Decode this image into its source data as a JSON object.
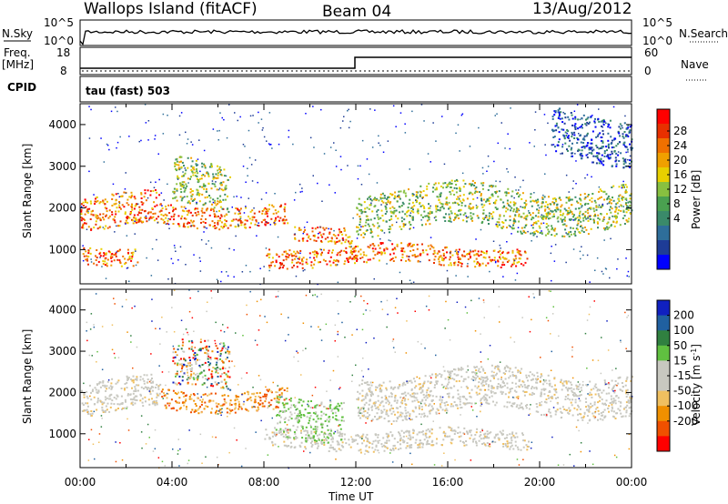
{
  "header": {
    "station": "Wallops Island (fitACF)",
    "beam": "Beam 04",
    "date": "13/Aug/2012"
  },
  "top_panels": {
    "nsky_label": "N.Sky",
    "nsky_ticks": [
      "10^5",
      "10^0"
    ],
    "nsearch_label": "N.Search",
    "nsearch_ticks": [
      "10^5",
      "10^0"
    ],
    "freq_label": "Freq.",
    "freq_unit": "[MHz]",
    "freq_ticks": [
      "18",
      "8"
    ],
    "nave_label": "Nave",
    "nave_ticks": [
      "60",
      "0"
    ],
    "cpid_label": "CPID",
    "cpid_value": "tau (fast) 503"
  },
  "chart_data": [
    {
      "type": "heatmap",
      "name": "power",
      "ylabel": "Slant Range [km]",
      "yticks": [
        "4000",
        "3000",
        "2000",
        "1000"
      ],
      "ylim": [
        180,
        4500
      ],
      "xlim": [
        0,
        24
      ],
      "colorbar_label": "Power [dB]",
      "colorbar_ticks": [
        "28",
        "24",
        "20",
        "16",
        "12",
        "8",
        "4"
      ],
      "colorbar_colors": [
        "#0000ff",
        "#1e3c96",
        "#2e6e9a",
        "#3a8a6a",
        "#4aa050",
        "#88c040",
        "#e8d000",
        "#f0a000",
        "#f07000",
        "#e83000",
        "#ff0000"
      ],
      "echo_bands": [
        {
          "t0": 0.0,
          "t1": 3.5,
          "r0": 1500,
          "r1": 2300,
          "level": "high"
        },
        {
          "t0": 3.5,
          "t1": 9.0,
          "r0": 1600,
          "r1": 2100,
          "level": "high"
        },
        {
          "t0": 9.3,
          "t1": 11.8,
          "r0": 1150,
          "r1": 1550,
          "level": "high"
        },
        {
          "t0": 12.0,
          "t1": 24.0,
          "r0": 1500,
          "r1": 2500,
          "level": "mid"
        },
        {
          "t0": 0.0,
          "t1": 2.5,
          "r0": 700,
          "r1": 1100,
          "level": "high"
        },
        {
          "t0": 8.0,
          "t1": 19.5,
          "r0": 650,
          "r1": 1100,
          "level": "high"
        },
        {
          "t0": 4.0,
          "t1": 6.5,
          "r0": 2000,
          "r1": 3100,
          "level": "mid"
        },
        {
          "t0": 20.5,
          "t1": 24.0,
          "r0": 3200,
          "r1": 4300,
          "level": "low"
        }
      ]
    },
    {
      "type": "heatmap",
      "name": "velocity",
      "ylabel": "Slant Range [km]",
      "yticks": [
        "4000",
        "3000",
        "2000",
        "1000"
      ],
      "ylim": [
        180,
        4500
      ],
      "xlim": [
        0,
        24
      ],
      "xlabel": "Time UT",
      "xticks": [
        "00:00",
        "04:00",
        "08:00",
        "12:00",
        "16:00",
        "20:00",
        "00:00"
      ],
      "colorbar_label": "Velocity [m s",
      "colorbar_label_sup": "-1",
      "colorbar_label_end": "]",
      "colorbar_ticks": [
        "200",
        "100",
        "50",
        "15",
        "-15",
        "-50",
        "-100",
        "-200"
      ],
      "colorbar_colors": [
        "#ff0000",
        "#f05000",
        "#f09000",
        "#f0c060",
        "#c8c8c0",
        "#c8c8c0",
        "#60c040",
        "#308040",
        "#2060a0",
        "#1020c0"
      ],
      "echo_bands": [
        {
          "t0": 0.0,
          "t1": 3.5,
          "r0": 1500,
          "r1": 2300,
          "level": "grey"
        },
        {
          "t0": 3.5,
          "t1": 9.0,
          "r0": 1600,
          "r1": 2100,
          "level": "orange"
        },
        {
          "t0": 12.0,
          "t1": 24.0,
          "r0": 1500,
          "r1": 2500,
          "level": "grey"
        },
        {
          "t0": 8.0,
          "t1": 19.5,
          "r0": 650,
          "r1": 1100,
          "level": "grey"
        },
        {
          "t0": 8.5,
          "t1": 11.5,
          "r0": 1000,
          "r1": 2000,
          "level": "green"
        },
        {
          "t0": 4.0,
          "t1": 6.5,
          "r0": 2000,
          "r1": 3100,
          "level": "mixed"
        }
      ]
    }
  ]
}
